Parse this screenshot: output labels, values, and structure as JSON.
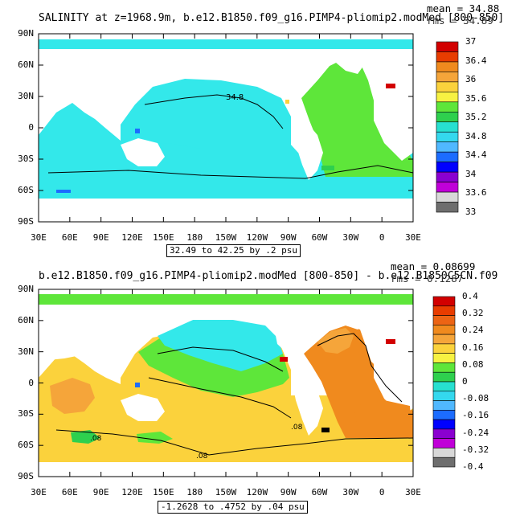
{
  "panels": [
    {
      "title": "SALINITY at z=1968.9m, b.e12.B1850.f09_g16.PIMP4-pliomip2.modMed [800-850]",
      "mean_label": "mean = 34.88",
      "rms_label": "rms = 34.89",
      "range_label": "32.49 to 42.25 by .2 psu",
      "contour_labels": [
        "34.8"
      ]
    },
    {
      "title": "b.e12.B1850.f09_g16.PIMP4-pliomip2.modMed [800-850] - b.e12.B1850C5CN.f09",
      "mean_label": "mean = 0.08699",
      "rms_label": "rms = 0.1287",
      "range_label": "-1.2628 to .4752 by .04 psu",
      "contour_labels": [
        ".08",
        ".08",
        ".08"
      ]
    }
  ],
  "chart_data": [
    {
      "type": "heatmap",
      "variable": "salinity",
      "units": "psu",
      "title": "SALINITY at z=1968.9m, b.e12.B1850.f09_g16.PIMP4-pliomip2.modMed [800-850]",
      "mean": 34.88,
      "rms": 34.89,
      "range": [
        32.49,
        42.25
      ],
      "contour_interval": 0.2,
      "x_ticks": [
        "30E",
        "60E",
        "90E",
        "120E",
        "150E",
        "180",
        "150W",
        "120W",
        "90W",
        "60W",
        "30W",
        "0",
        "30E"
      ],
      "y_ticks": [
        "90N",
        "60N",
        "30N",
        "0",
        "30S",
        "60S",
        "90S"
      ],
      "colorbar": {
        "labels": [
          "37",
          "36.4",
          "36",
          "35.6",
          "35.2",
          "34.8",
          "34.4",
          "34",
          "33.6",
          "33"
        ],
        "colors": [
          "#d20000",
          "#e83c00",
          "#f08a1e",
          "#f5a53a",
          "#fbd23c",
          "#f7f242",
          "#5ee63a",
          "#2ed04e",
          "#27e0d0",
          "#34d8ee",
          "#50b8ff",
          "#1c6cff",
          "#0000ff",
          "#8a00d0",
          "#c000d8",
          "#d8d8d8",
          "#6e6e6e"
        ]
      }
    },
    {
      "type": "heatmap",
      "variable": "salinity difference",
      "units": "psu",
      "title": "b.e12.B1850.f09_g16.PIMP4-pliomip2.modMed [800-850] - b.e12.B1850C5CN.f09",
      "mean": 0.08699,
      "rms": 0.1287,
      "range": [
        -1.2628,
        0.4752
      ],
      "contour_interval": 0.04,
      "x_ticks": [
        "30E",
        "60E",
        "90E",
        "120E",
        "150E",
        "180",
        "150W",
        "120W",
        "90W",
        "60W",
        "30W",
        "0",
        "30E"
      ],
      "y_ticks": [
        "90N",
        "60N",
        "30N",
        "0",
        "30S",
        "60S",
        "90S"
      ],
      "colorbar": {
        "labels": [
          "0.4",
          "0.32",
          "0.24",
          "0.16",
          "0.08",
          "0",
          "-0.08",
          "-0.16",
          "-0.24",
          "-0.32",
          "-0.4"
        ],
        "colors": [
          "#d20000",
          "#e83c00",
          "#ec6414",
          "#f08a1e",
          "#f5a53a",
          "#fbd23c",
          "#f7f242",
          "#5ee63a",
          "#2ed04e",
          "#27e0d0",
          "#34d8ee",
          "#50b8ff",
          "#1c6cff",
          "#0000ff",
          "#8a00d0",
          "#c000d8",
          "#d8d8d8",
          "#6e6e6e"
        ]
      }
    }
  ]
}
